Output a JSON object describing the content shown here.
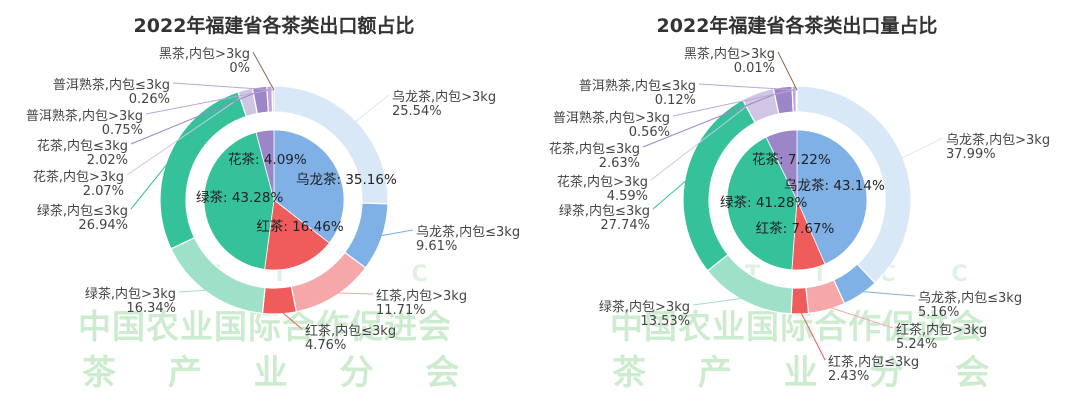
{
  "watermark": {
    "org": "中国农业国际合作促进会",
    "sub": "茶 产 业 分 会",
    "tic": "T I C C"
  },
  "colors": {
    "wulong": "#bcd6ee",
    "wulong_lite": "#d9e8f6",
    "wulong_dark": "#7fb0e6",
    "hongcha": "#f05b5b",
    "hongcha_lite": "#f6a7a7",
    "lvcha": "#35c19a",
    "lvcha_lite": "#9ee0c8",
    "huacha": "#9b86c8",
    "huacha_lite": "#cfc6e4",
    "puer": "#bfa4d6",
    "heicha": "#8a6d4f",
    "inner_wulong": "#7fb0e6",
    "inner_hong": "#f05b5b",
    "inner_lv": "#35c19a",
    "inner_hua": "#9b86c8"
  },
  "chart_data": [
    {
      "type": "pie",
      "title": "2022年福建省各茶类出口额占比",
      "outer": [
        {
          "name": "乌龙茶,内包>3kg",
          "value": 25.54,
          "label": "25.54%",
          "color": "wulong_lite"
        },
        {
          "name": "乌龙茶,内包≤3kg",
          "value": 9.61,
          "label": "9.61%",
          "color": "wulong_dark"
        },
        {
          "name": "红茶,内包>3kg",
          "value": 11.71,
          "label": "11.71%",
          "color": "hongcha_lite"
        },
        {
          "name": "红茶,内包≤3kg",
          "value": 4.76,
          "label": "4.76%",
          "color": "hongcha"
        },
        {
          "name": "绿茶,内包>3kg",
          "value": 16.34,
          "label": "16.34%",
          "color": "lvcha_lite"
        },
        {
          "name": "绿茶,内包≤3kg",
          "value": 26.94,
          "label": "26.94%",
          "color": "lvcha"
        },
        {
          "name": "花茶,内包>3kg",
          "value": 2.07,
          "label": "2.07%",
          "color": "huacha_lite"
        },
        {
          "name": "花茶,内包≤3kg",
          "value": 2.02,
          "label": "2.02%",
          "color": "huacha"
        },
        {
          "name": "普洱熟茶,内包>3kg",
          "value": 0.75,
          "label": "0.75%",
          "color": "puer"
        },
        {
          "name": "普洱熟茶,内包≤3kg",
          "value": 0.26,
          "label": "0.26%",
          "color": "puer"
        },
        {
          "name": "黑茶,内包>3kg",
          "value": 0,
          "label": "0%",
          "color": "heicha"
        }
      ],
      "inner": [
        {
          "name": "乌龙茶",
          "value": 35.16,
          "text": "乌龙茶: 35.16%",
          "color": "inner_wulong"
        },
        {
          "name": "红茶",
          "value": 16.46,
          "text": "红茶: 16.46%",
          "color": "inner_hong"
        },
        {
          "name": "绿茶",
          "value": 43.28,
          "text": "绿茶: 43.28%",
          "color": "inner_lv"
        },
        {
          "name": "花茶",
          "value": 4.09,
          "text": "花茶: 4.09%",
          "color": "inner_hua"
        }
      ]
    },
    {
      "type": "pie",
      "title": "2022年福建省各茶类出口量占比",
      "outer": [
        {
          "name": "乌龙茶,内包>3kg",
          "value": 37.99,
          "label": "37.99%",
          "color": "wulong_lite"
        },
        {
          "name": "乌龙茶,内包≤3kg",
          "value": 5.16,
          "label": "5.16%",
          "color": "wulong_dark"
        },
        {
          "name": "红茶,内包>3kg",
          "value": 5.24,
          "label": "5.24%",
          "color": "hongcha_lite"
        },
        {
          "name": "红茶,内包≤3kg",
          "value": 2.43,
          "label": "2.43%",
          "color": "hongcha"
        },
        {
          "name": "绿茶,内包>3kg",
          "value": 13.53,
          "label": "13.53%",
          "color": "lvcha_lite"
        },
        {
          "name": "绿茶,内包≤3kg",
          "value": 27.74,
          "label": "27.74%",
          "color": "lvcha"
        },
        {
          "name": "花茶,内包>3kg",
          "value": 4.59,
          "label": "4.59%",
          "color": "huacha_lite"
        },
        {
          "name": "花茶,内包≤3kg",
          "value": 2.63,
          "label": "2.63%",
          "color": "huacha"
        },
        {
          "name": "普洱熟茶,内包>3kg",
          "value": 0.56,
          "label": "0.56%",
          "color": "puer"
        },
        {
          "name": "普洱熟茶,内包≤3kg",
          "value": 0.12,
          "label": "0.12%",
          "color": "puer"
        },
        {
          "name": "黑茶,内包>3kg",
          "value": 0.01,
          "label": "0.01%",
          "color": "heicha"
        }
      ],
      "inner": [
        {
          "name": "乌龙茶",
          "value": 43.14,
          "text": "乌龙茶: 43.14%",
          "color": "inner_wulong"
        },
        {
          "name": "红茶",
          "value": 7.67,
          "text": "红茶: 7.67%",
          "color": "inner_hong"
        },
        {
          "name": "绿茶",
          "value": 41.28,
          "text": "绿茶: 41.28%",
          "color": "inner_lv"
        },
        {
          "name": "花茶",
          "value": 7.22,
          "text": "花茶: 7.22%",
          "color": "inner_hua"
        }
      ]
    }
  ]
}
